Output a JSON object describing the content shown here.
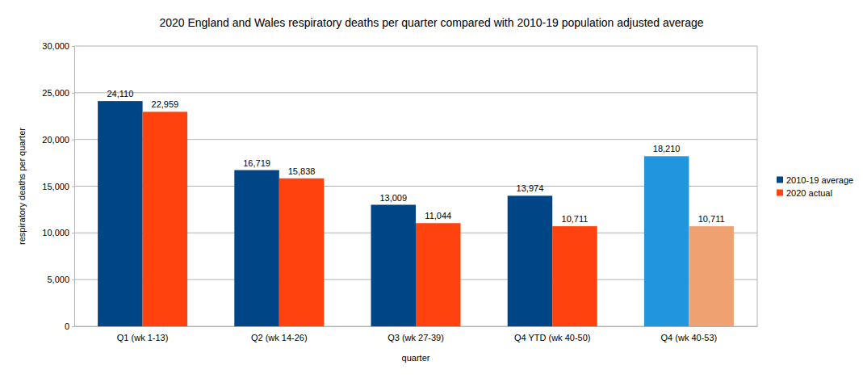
{
  "chart_data": {
    "type": "bar",
    "title": "2020 England and Wales respiratory deaths per quarter compared with 2010-19 population adjusted average",
    "x_label": "quarter",
    "y_label": "respiratory deaths per quarter",
    "categories": [
      "Q1 (wk 1-13)",
      "Q2 (wk 14-26)",
      "Q3 (wk 27-39)",
      "Q4 YTD (wk 40-50)",
      "Q4 (wk 40-53)"
    ],
    "series": [
      {
        "name": "2010-19 average",
        "color": "#004586",
        "colors": [
          "#004586",
          "#004586",
          "#004586",
          "#004586",
          "#2196de"
        ],
        "values": [
          24110,
          16719,
          13009,
          13974,
          18210
        ],
        "value_labels": [
          "24,110",
          "16,719",
          "13,009",
          "13,974",
          "18,210"
        ]
      },
      {
        "name": "2020 actual",
        "color": "#ff420e",
        "colors": [
          "#ff420e",
          "#ff420e",
          "#ff420e",
          "#ff420e",
          "#f0a172"
        ],
        "values": [
          22959,
          15838,
          11044,
          10711,
          10711
        ],
        "value_labels": [
          "22,959",
          "15,838",
          "11,044",
          "10,711",
          "10,711"
        ]
      }
    ],
    "ylim": [
      0,
      30000
    ],
    "yticks": [
      0,
      {
        "value": 5000,
        "label": "5,000"
      },
      {
        "value": 10000,
        "label": "10,000"
      },
      {
        "value": 15000,
        "label": "15,000"
      },
      {
        "value": 20000,
        "label": "20,000"
      },
      {
        "value": 25000,
        "label": "25,000"
      },
      {
        "value": 30000,
        "label": "30,000"
      }
    ],
    "grid": true,
    "legend": "right",
    "data_labels": true
  }
}
